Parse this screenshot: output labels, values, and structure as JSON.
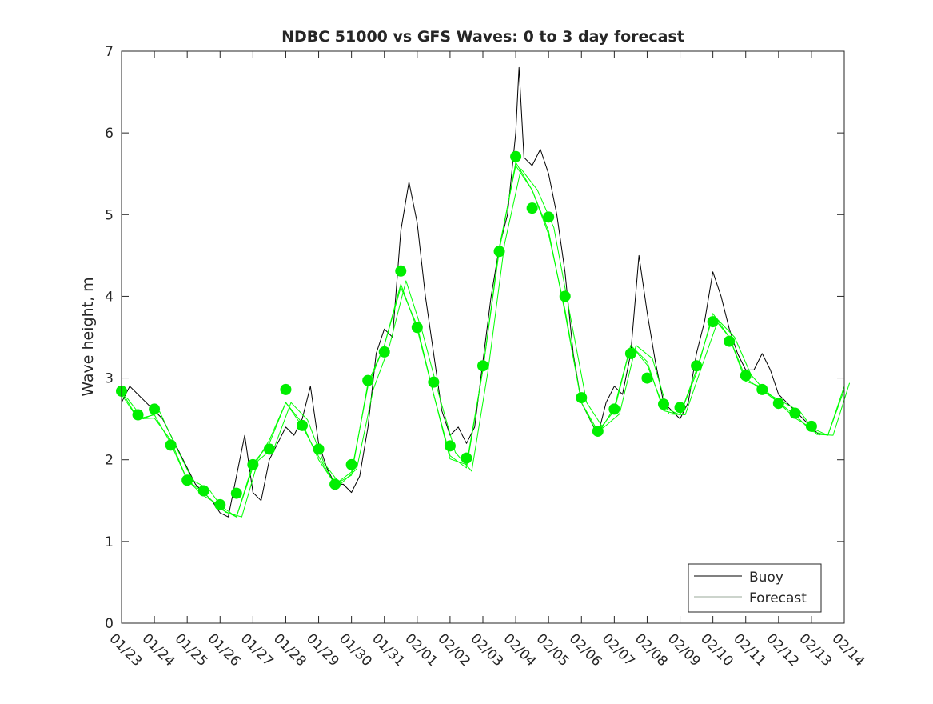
{
  "chart_data": {
    "type": "line",
    "title": "NDBC 51000 vs GFS Waves: 0 to 3 day forecast",
    "xlabel": "",
    "ylabel": "Wave height, m",
    "xlim": [
      0,
      22
    ],
    "ylim": [
      0,
      7
    ],
    "x_unit": "days since 01/23",
    "x_tick_values": [
      0,
      1,
      2,
      3,
      4,
      5,
      6,
      7,
      8,
      9,
      10,
      11,
      12,
      13,
      14,
      15,
      16,
      17,
      18,
      19,
      20,
      21,
      22
    ],
    "x_tick_labels": [
      "01/23",
      "01/24",
      "01/25",
      "01/26",
      "01/27",
      "01/28",
      "01/29",
      "01/30",
      "01/31",
      "02/01",
      "02/02",
      "02/03",
      "02/04",
      "02/05",
      "02/06",
      "02/07",
      "02/08",
      "02/09",
      "02/10",
      "02/11",
      "02/12",
      "02/13",
      "02/14"
    ],
    "y_tick_labels": [
      "0",
      "1",
      "2",
      "3",
      "4",
      "5",
      "6",
      "7"
    ],
    "legend": {
      "placement": "bottom-right",
      "entries": [
        "Buoy",
        "Forecast"
      ]
    },
    "colors": {
      "buoy": "#000000",
      "forecast": "#00ff00",
      "markers": "#00ee00"
    },
    "series": [
      {
        "name": "Buoy",
        "x": [
          0,
          0.25,
          0.5,
          0.75,
          1,
          1.25,
          1.5,
          1.75,
          2,
          2.25,
          2.5,
          2.75,
          3,
          3.25,
          3.5,
          3.75,
          4,
          4.25,
          4.5,
          4.75,
          5,
          5.25,
          5.5,
          5.75,
          6,
          6.25,
          6.5,
          6.75,
          7,
          7.25,
          7.5,
          7.75,
          8,
          8.25,
          8.5,
          8.75,
          9,
          9.25,
          9.5,
          9.75,
          10,
          10.25,
          10.5,
          10.75,
          11,
          11.25,
          11.5,
          11.75,
          12,
          12.1,
          12.25,
          12.5,
          12.75,
          13,
          13.25,
          13.5,
          13.75,
          14,
          14.25,
          14.5,
          14.75,
          15,
          15.25,
          15.5,
          15.75,
          16,
          16.25,
          16.5,
          16.75,
          17,
          17.25,
          17.5,
          17.75,
          18,
          18.25,
          18.5,
          18.75,
          19,
          19.25,
          19.5,
          19.75,
          20,
          20.25,
          20.5,
          20.75,
          21,
          21.25
        ],
        "values": [
          2.7,
          2.9,
          2.8,
          2.7,
          2.6,
          2.5,
          2.3,
          2.1,
          1.9,
          1.7,
          1.6,
          1.5,
          1.35,
          1.3,
          1.8,
          2.3,
          1.6,
          1.5,
          2.0,
          2.2,
          2.4,
          2.3,
          2.5,
          2.9,
          2.2,
          1.9,
          1.7,
          1.7,
          1.6,
          1.8,
          2.4,
          3.3,
          3.6,
          3.5,
          4.8,
          5.4,
          4.9,
          4.0,
          3.3,
          2.6,
          2.3,
          2.4,
          2.2,
          2.4,
          3.2,
          4.0,
          4.6,
          5.0,
          6.0,
          6.8,
          5.7,
          5.6,
          5.8,
          5.5,
          5.0,
          4.3,
          3.3,
          2.7,
          2.5,
          2.3,
          2.7,
          2.9,
          2.8,
          3.3,
          4.5,
          3.8,
          3.2,
          2.7,
          2.6,
          2.5,
          2.7,
          3.3,
          3.7,
          4.3,
          4.0,
          3.6,
          3.3,
          3.1,
          3.1,
          3.3,
          3.1,
          2.8,
          2.7,
          2.6,
          2.5,
          2.4,
          2.3
        ]
      },
      {
        "name": "Forecast",
        "x": [
          0,
          0.5,
          1,
          1.5,
          2,
          2.5,
          3,
          3.5,
          4,
          4.5,
          5,
          5.5,
          6,
          6.5,
          7,
          7.5,
          8,
          8.5,
          9,
          9.5,
          10,
          10.5,
          11,
          11.5,
          12,
          12.5,
          13,
          13.5,
          14,
          14.5,
          15,
          15.5,
          16,
          16.5,
          17,
          17.5,
          18,
          18.5,
          19,
          19.5,
          20,
          20.5,
          21,
          21.5,
          22
        ],
        "values": [
          2.8,
          2.5,
          2.55,
          2.2,
          1.75,
          1.6,
          1.4,
          1.3,
          1.95,
          2.2,
          2.7,
          2.45,
          2.0,
          1.7,
          1.85,
          2.9,
          3.4,
          4.15,
          3.6,
          2.8,
          2.05,
          1.9,
          3.1,
          4.6,
          5.6,
          5.3,
          4.8,
          3.8,
          2.7,
          2.35,
          2.6,
          3.4,
          3.2,
          2.6,
          2.55,
          3.1,
          3.75,
          3.5,
          3.0,
          2.85,
          2.7,
          2.55,
          2.35,
          2.3,
          2.9
        ]
      },
      {
        "name": "Forecast markers",
        "x": [
          0,
          0.5,
          1,
          1.5,
          2,
          2.5,
          3,
          3.5,
          4,
          4.5,
          5,
          5.5,
          6,
          6.5,
          7,
          7.5,
          8,
          8.5,
          9,
          9.5,
          10,
          10.5,
          11,
          11.5,
          12,
          12.5,
          13,
          13.5,
          14,
          14.5,
          15,
          15.5,
          16,
          16.5,
          17,
          17.5,
          18,
          18.5,
          19,
          19.5,
          20,
          20.5,
          21
        ],
        "values": [
          2.84,
          2.55,
          2.62,
          2.18,
          1.75,
          1.62,
          1.45,
          1.59,
          1.94,
          2.13,
          2.86,
          2.42,
          2.13,
          1.7,
          1.94,
          2.97,
          3.32,
          4.31,
          3.62,
          2.95,
          2.17,
          2.02,
          3.15,
          4.55,
          5.71,
          5.08,
          4.97,
          4.0,
          2.76,
          2.35,
          2.62,
          3.3,
          3.0,
          2.68,
          2.64,
          3.15,
          3.69,
          3.45,
          3.03,
          2.86,
          2.69,
          2.57,
          2.41
        ]
      }
    ]
  }
}
